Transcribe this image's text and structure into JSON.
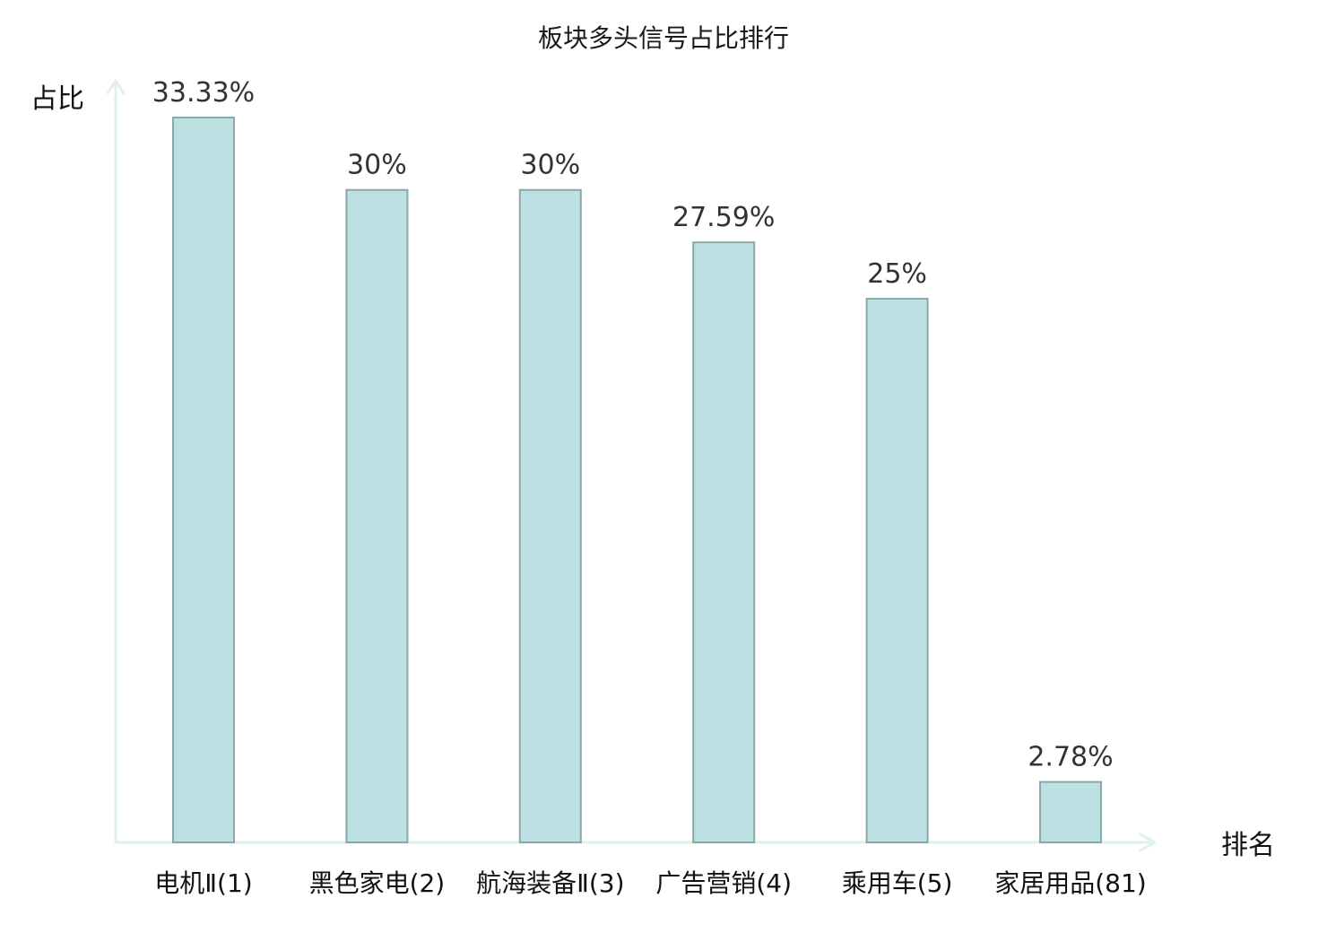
{
  "chart_data": {
    "type": "bar",
    "title": "板块多头信号占比排行",
    "xlabel": "排名",
    "ylabel": "占比",
    "categories": [
      "电机Ⅱ(1)",
      "黑色家电(2)",
      "航海装备Ⅱ(3)",
      "广告营销(4)",
      "乘用车(5)",
      "家居用品(81)"
    ],
    "values": [
      33.33,
      30,
      30,
      27.59,
      25,
      2.78
    ],
    "value_labels": [
      "33.33%",
      "30%",
      "30%",
      "27.59%",
      "25%",
      "2.78%"
    ],
    "highlight_category": "家居用品(81)",
    "ylim": [
      0,
      35
    ],
    "grid": false,
    "legend": "none",
    "colors": {
      "bar_fill": "#bde0e2",
      "bar_stroke": "#8aa8aa",
      "axis": "#dff1ee",
      "highlight_text": "#e0191f",
      "text": "#111111"
    }
  }
}
